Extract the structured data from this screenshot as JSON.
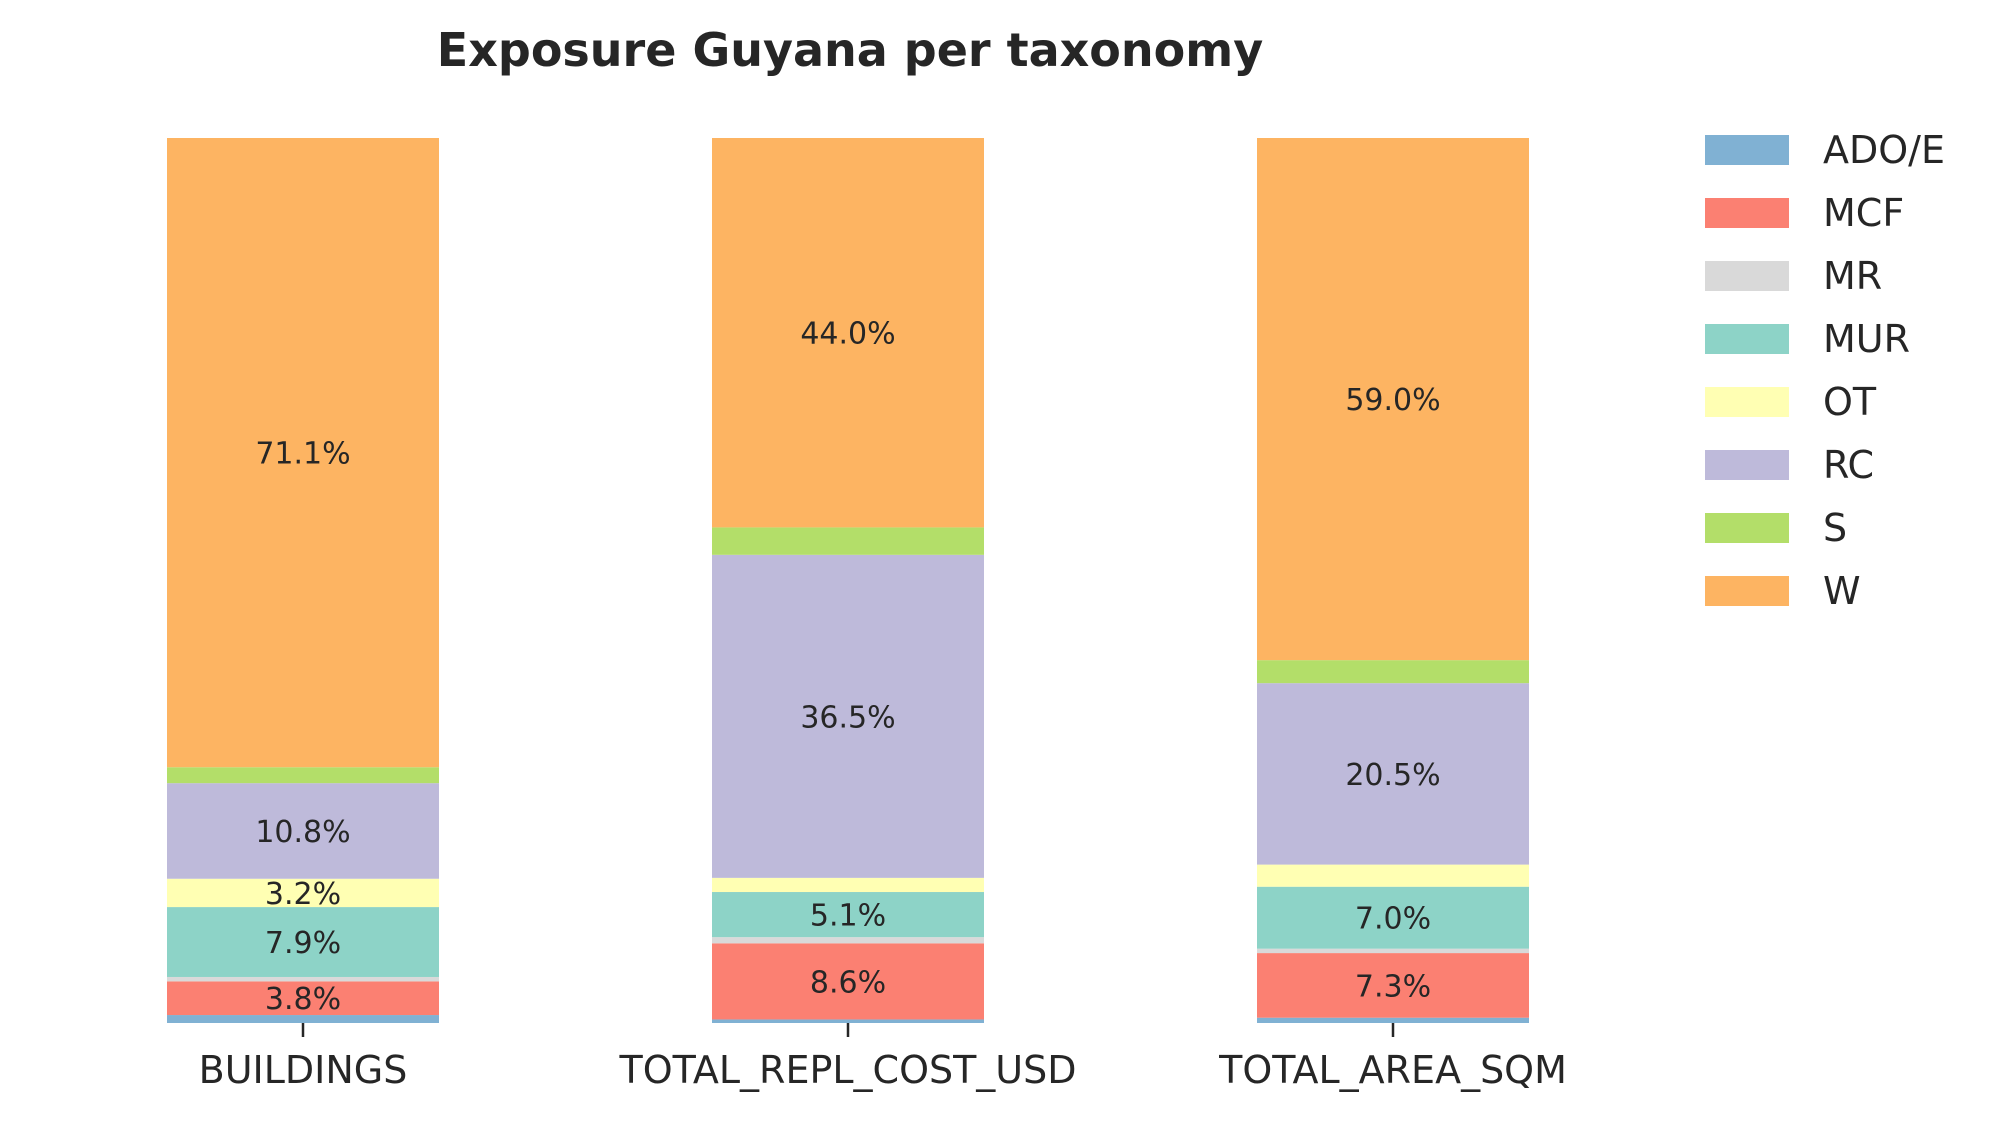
{
  "chart_data": {
    "type": "bar",
    "stacked": true,
    "normalized_percent": true,
    "title": "Exposure Guyana per taxonomy",
    "xlabel": "",
    "ylabel": "",
    "ylim": [
      0,
      100
    ],
    "grid": false,
    "legend_position": "right",
    "categories": [
      "BUILDINGS",
      "TOTAL_REPL_COST_USD",
      "TOTAL_AREA_SQM"
    ],
    "series": [
      {
        "name": "ADO/E",
        "color": "#80b1d3",
        "values": [
          0.9,
          0.4,
          0.6
        ],
        "labels": [
          "",
          "",
          ""
        ]
      },
      {
        "name": "MCF",
        "color": "#fb8072",
        "values": [
          3.8,
          8.6,
          7.3
        ],
        "labels": [
          "3.8%",
          "8.6%",
          "7.3%"
        ]
      },
      {
        "name": "MR",
        "color": "#d9d9d9",
        "values": [
          0.5,
          0.7,
          0.5
        ],
        "labels": [
          "",
          "",
          ""
        ]
      },
      {
        "name": "MUR",
        "color": "#8dd3c7",
        "values": [
          7.9,
          5.1,
          7.0
        ],
        "labels": [
          "7.9%",
          "5.1%",
          "7.0%"
        ]
      },
      {
        "name": "OT",
        "color": "#ffffb3",
        "values": [
          3.2,
          1.6,
          2.5
        ],
        "labels": [
          "3.2%",
          "",
          ""
        ]
      },
      {
        "name": "RC",
        "color": "#bebada",
        "values": [
          10.8,
          36.5,
          20.5
        ],
        "labels": [
          "10.8%",
          "36.5%",
          "20.5%"
        ]
      },
      {
        "name": "S",
        "color": "#b3de69",
        "values": [
          1.8,
          3.1,
          2.6
        ],
        "labels": [
          "",
          "",
          ""
        ]
      },
      {
        "name": "W",
        "color": "#fdb462",
        "values": [
          71.1,
          44.0,
          59.0
        ],
        "labels": [
          "71.1%",
          "44.0%",
          "59.0%"
        ]
      }
    ]
  }
}
